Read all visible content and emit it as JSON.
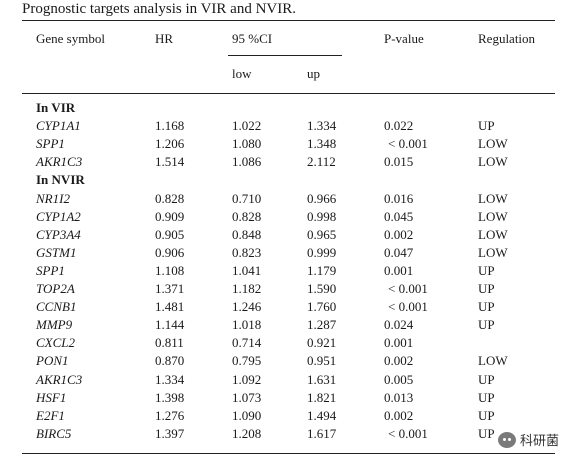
{
  "caption": "Prognostic targets analysis in VIR and NVIR.",
  "headers": {
    "gene": "Gene symbol",
    "hr": "HR",
    "ci": "95 %CI",
    "low": "low",
    "up": "up",
    "p": "P-value",
    "reg": "Regulation"
  },
  "groups": [
    {
      "label": "In VIR",
      "rows": [
        {
          "gene": "CYP1A1",
          "hr": "1.168",
          "low": "1.022",
          "up": "1.334",
          "p": "0.022",
          "reg": "UP"
        },
        {
          "gene": "SPP1",
          "hr": "1.206",
          "low": "1.080",
          "up": "1.348",
          "p": "< 0.001",
          "reg": "LOW"
        },
        {
          "gene": "AKR1C3",
          "hr": "1.514",
          "low": "1.086",
          "up": "2.112",
          "p": "0.015",
          "reg": "LOW"
        }
      ]
    },
    {
      "label": "In NVIR",
      "rows": [
        {
          "gene": "NR1I2",
          "hr": "0.828",
          "low": "0.710",
          "up": "0.966",
          "p": "0.016",
          "reg": "LOW"
        },
        {
          "gene": "CYP1A2",
          "hr": "0.909",
          "low": "0.828",
          "up": "0.998",
          "p": "0.045",
          "reg": "LOW"
        },
        {
          "gene": "CYP3A4",
          "hr": "0.905",
          "low": "0.848",
          "up": "0.965",
          "p": "0.002",
          "reg": "LOW"
        },
        {
          "gene": "GSTM1",
          "hr": "0.906",
          "low": "0.823",
          "up": "0.999",
          "p": "0.047",
          "reg": "LOW"
        },
        {
          "gene": "SPP1",
          "hr": "1.108",
          "low": "1.041",
          "up": "1.179",
          "p": "0.001",
          "reg": "UP"
        },
        {
          "gene": "TOP2A",
          "hr": "1.371",
          "low": "1.182",
          "up": "1.590",
          "p": "< 0.001",
          "reg": "UP"
        },
        {
          "gene": "CCNB1",
          "hr": "1.481",
          "low": "1.246",
          "up": "1.760",
          "p": "< 0.001",
          "reg": "UP"
        },
        {
          "gene": "MMP9",
          "hr": "1.144",
          "low": "1.018",
          "up": "1.287",
          "p": "0.024",
          "reg": "UP"
        },
        {
          "gene": "CXCL2",
          "hr": "0.811",
          "low": "0.714",
          "up": "0.921",
          "p": "0.001",
          "reg": ""
        },
        {
          "gene": "PON1",
          "hr": "0.870",
          "low": "0.795",
          "up": "0.951",
          "p": "0.002",
          "reg": "LOW"
        },
        {
          "gene": "AKR1C3",
          "hr": "1.334",
          "low": "1.092",
          "up": "1.631",
          "p": "0.005",
          "reg": "UP"
        },
        {
          "gene": "HSF1",
          "hr": "1.398",
          "low": "1.073",
          "up": "1.821",
          "p": "0.013",
          "reg": "UP"
        },
        {
          "gene": "E2F1",
          "hr": "1.276",
          "low": "1.090",
          "up": "1.494",
          "p": "0.002",
          "reg": "UP"
        },
        {
          "gene": "BIRC5",
          "hr": "1.397",
          "low": "1.208",
          "up": "1.617",
          "p": "< 0.001",
          "reg": "UP"
        }
      ]
    }
  ],
  "watermark": {
    "text": "科研菌",
    "icon": "wechat-icon"
  }
}
